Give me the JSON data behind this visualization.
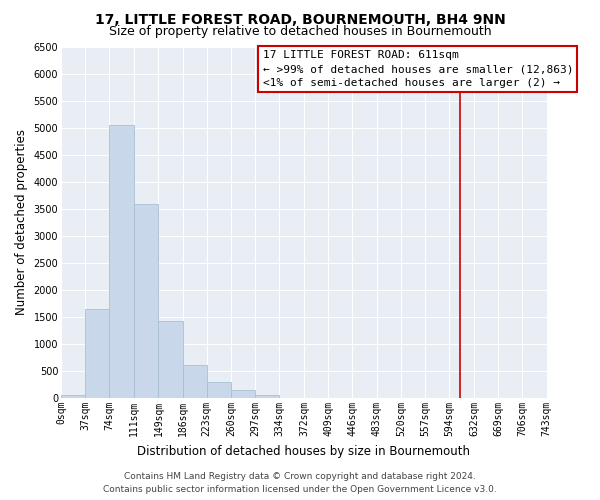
{
  "title": "17, LITTLE FOREST ROAD, BOURNEMOUTH, BH4 9NN",
  "subtitle": "Size of property relative to detached houses in Bournemouth",
  "xlabel": "Distribution of detached houses by size in Bournemouth",
  "ylabel": "Number of detached properties",
  "bar_edges": [
    0,
    37,
    74,
    111,
    149,
    186,
    223,
    260,
    297,
    334,
    372,
    409,
    446,
    483,
    520,
    557,
    594,
    632,
    669,
    706,
    743
  ],
  "bar_heights": [
    65,
    1650,
    5050,
    3580,
    1420,
    610,
    300,
    145,
    60,
    0,
    0,
    0,
    0,
    0,
    0,
    0,
    0,
    0,
    0,
    0
  ],
  "bar_color": "#c8d8ea",
  "bar_edge_color": "#a8c0d4",
  "vline_x": 611,
  "vline_color": "#cc0000",
  "ylim": [
    0,
    6500
  ],
  "xlim": [
    0,
    743
  ],
  "annotation_title": "17 LITTLE FOREST ROAD: 611sqm",
  "annotation_line1": "← >99% of detached houses are smaller (12,863)",
  "annotation_line2": "<1% of semi-detached houses are larger (2) →",
  "tick_labels": [
    "0sqm",
    "37sqm",
    "74sqm",
    "111sqm",
    "149sqm",
    "186sqm",
    "223sqm",
    "260sqm",
    "297sqm",
    "334sqm",
    "372sqm",
    "409sqm",
    "446sqm",
    "483sqm",
    "520sqm",
    "557sqm",
    "594sqm",
    "632sqm",
    "669sqm",
    "706sqm",
    "743sqm"
  ],
  "tick_positions": [
    0,
    37,
    74,
    111,
    149,
    186,
    223,
    260,
    297,
    334,
    372,
    409,
    446,
    483,
    520,
    557,
    594,
    632,
    669,
    706,
    743
  ],
  "ytick_labels": [
    "0",
    "500",
    "1000",
    "1500",
    "2000",
    "2500",
    "3000",
    "3500",
    "4000",
    "4500",
    "5000",
    "5500",
    "6000",
    "6500"
  ],
  "ytick_values": [
    0,
    500,
    1000,
    1500,
    2000,
    2500,
    3000,
    3500,
    4000,
    4500,
    5000,
    5500,
    6000,
    6500
  ],
  "footer_line1": "Contains HM Land Registry data © Crown copyright and database right 2024.",
  "footer_line2": "Contains public sector information licensed under the Open Government Licence v3.0.",
  "background_color": "#e8eef4",
  "grid_color": "#ffffff",
  "title_fontsize": 10,
  "subtitle_fontsize": 9,
  "axis_label_fontsize": 8.5,
  "tick_fontsize": 7,
  "footer_fontsize": 6.5,
  "annotation_fontsize": 8
}
